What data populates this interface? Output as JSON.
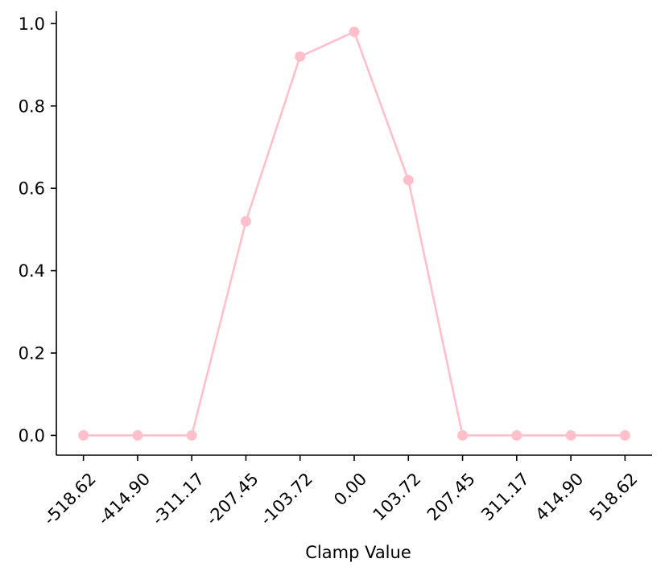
{
  "chart_data": {
    "type": "line",
    "title": "",
    "xlabel": "Clamp Value",
    "ylabel": "",
    "x": [
      -518.62,
      -414.9,
      -311.17,
      -207.45,
      -103.72,
      0.0,
      103.72,
      207.45,
      311.17,
      414.9,
      518.62
    ],
    "x_tick_labels": [
      "-518.62",
      "-414.90",
      "-311.17",
      "-207.45",
      "-103.72",
      "0.00",
      "103.72",
      "207.45",
      "311.17",
      "414.90",
      "518.62"
    ],
    "y_ticks": [
      0.0,
      0.2,
      0.4,
      0.6,
      0.8,
      1.0
    ],
    "y_tick_labels": [
      "0.0",
      "0.2",
      "0.4",
      "0.6",
      "0.8",
      "1.0"
    ],
    "ylim": [
      -0.048,
      1.03
    ],
    "xlim": [
      -570.48,
      570.48
    ],
    "series": [
      {
        "values": [
          0.0,
          0.0,
          0.0,
          0.52,
          0.92,
          0.98,
          0.62,
          0.0,
          0.0,
          0.0,
          0.0
        ],
        "color": "#ffc0cb",
        "marker": "circle"
      }
    ],
    "grid": false,
    "legend": "none",
    "spines": "left-bottom"
  }
}
